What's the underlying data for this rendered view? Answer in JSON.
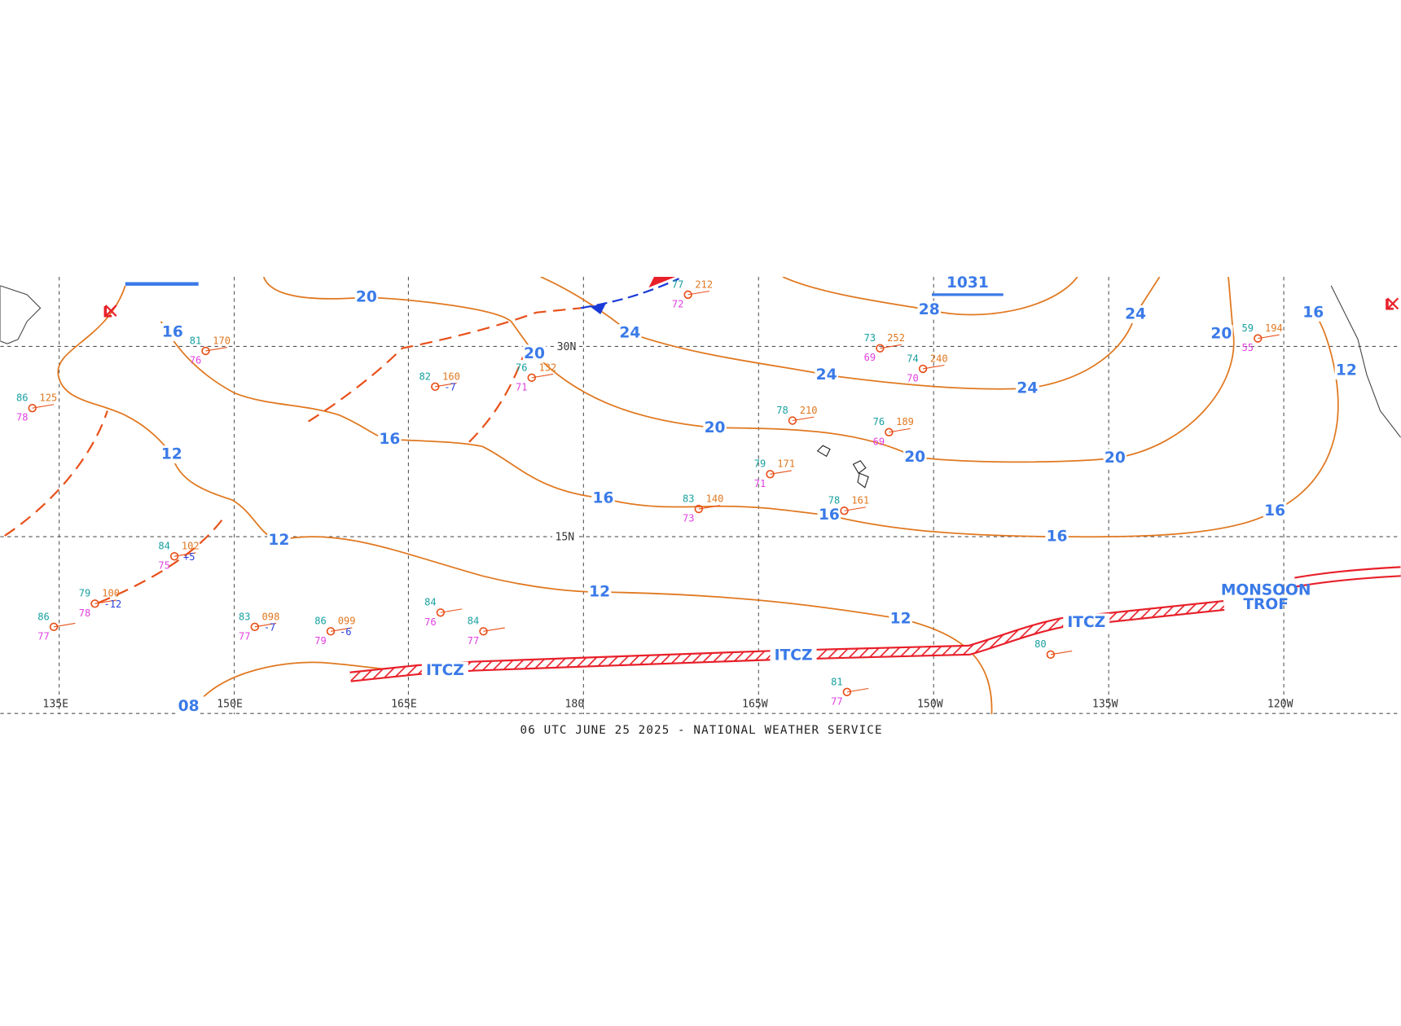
{
  "caption": "06 UTC JUNE 25 2025 - NATIONAL WEATHER SERVICE",
  "longitude_labels": [
    "135E",
    "150E",
    "165E",
    "180",
    "165W",
    "150W",
    "135W",
    "120W"
  ],
  "latitude_labels": [
    "30N",
    "15N"
  ],
  "isobar_labels": [
    "20",
    "16",
    "12",
    "16",
    "20",
    "24",
    "16",
    "12",
    "12",
    "20",
    "24",
    "28",
    "24",
    "24",
    "20",
    "16",
    "12",
    "20",
    "20",
    "16",
    "16",
    "16",
    "12",
    "08"
  ],
  "features": {
    "itcz_labels": [
      "ITCZ",
      "ITCZ",
      "ITCZ"
    ],
    "monsoon_trough": [
      "MONSOON",
      "TROF"
    ],
    "high_pressure": "1031",
    "lows": [
      "L",
      "L"
    ]
  },
  "stations": [
    {
      "temperature": "81",
      "pressure": "170",
      "dewpoint": "76"
    },
    {
      "temperature": "82",
      "pressure": "160",
      "tendency": "-7"
    },
    {
      "temperature": "76",
      "pressure": "132",
      "dewpoint": "71"
    },
    {
      "temperature": "77",
      "pressure": "212",
      "dewpoint": "72"
    },
    {
      "temperature": "73",
      "pressure": "252",
      "dewpoint": "69"
    },
    {
      "temperature": "74",
      "pressure": "240",
      "dewpoint": "70"
    },
    {
      "temperature": "78",
      "pressure": "210"
    },
    {
      "temperature": "76",
      "pressure": "189",
      "dewpoint": "69"
    },
    {
      "temperature": "79",
      "pressure": "171",
      "dewpoint": "71"
    },
    {
      "temperature": "83",
      "pressure": "140",
      "dewpoint": "73"
    },
    {
      "temperature": "78",
      "pressure": "161"
    },
    {
      "temperature": "83",
      "pressure": "098",
      "dewpoint": "77",
      "tendency": "-7"
    },
    {
      "temperature": "86",
      "pressure": "099",
      "dewpoint": "79",
      "tendency": "-6"
    },
    {
      "temperature": "79",
      "pressure": "100",
      "dewpoint": "78",
      "tendency": "-12"
    },
    {
      "temperature": "84",
      "pressure": "102",
      "dewpoint": "75",
      "tendency": "+5"
    },
    {
      "temperature": "86",
      "pressure": "125",
      "dewpoint": "78"
    },
    {
      "temperature": "84",
      "dewpoint": "76"
    },
    {
      "temperature": "84",
      "dewpoint": "77"
    },
    {
      "temperature": "81",
      "dewpoint": "77"
    },
    {
      "temperature": "59",
      "pressure": "194",
      "dewpoint": "55"
    },
    {
      "temperature": "80"
    },
    {
      "temperature": "86",
      "dewpoint": "77"
    }
  ]
}
